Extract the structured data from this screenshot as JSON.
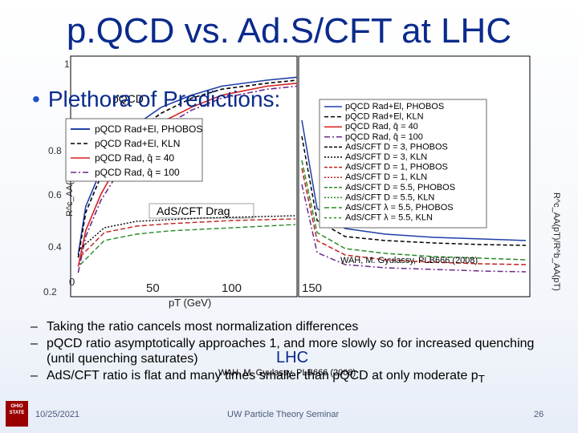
{
  "slide": {
    "title": "p.QCD vs. Ad.S/CFT at LHC",
    "bullet_main": "Plethora of Predictions:",
    "sub_bullets": [
      "Taking the ratio cancels most normalization differences",
      "pQCD ratio asymptotically approaches 1, and more slowly so for increased quenching (until quenching saturates)",
      "AdS/CFT ratio is flat and many times smaller than pQCD at only moderate p"
    ],
    "sub_bullet_3_subscript": "T",
    "citation": "WAH, M. Gyulassy, PLB666 (2008)",
    "citation_top": "WAH, M. Gyulassy, PLB666 (2008)",
    "lhc_label": "LHC",
    "date": "10/25/2021",
    "seminar": "UW Particle Theory Seminar",
    "page_number": "26",
    "logo_text": "OHIO STATE"
  },
  "colors": {
    "title": "#0a2a8c",
    "accent": "#1e50c8",
    "plot_bg": "#ffffff"
  },
  "chart_data": [
    {
      "type": "line",
      "title": "",
      "ylabel": "R^c_AA(pT)/R^b_AA(pT)",
      "xlabel": "pT (GeV)",
      "x_ticks": [
        "0",
        "50",
        "100"
      ],
      "y_ticks": [
        "0.2",
        "0.4",
        "0.6",
        "0.8",
        "1"
      ],
      "xlim": [
        0,
        150
      ],
      "ylim": [
        0.2,
        1.0
      ],
      "inset_label": "pQCD",
      "annotation": "AdS/CFT Drag",
      "legend": [
        "pQCD Rad+El, PHOBOS",
        "pQCD Rad+El, KLN",
        "pQCD Rad, q̂ = 40",
        "pQCD Rad, q̂ = 100"
      ],
      "series": [
        {
          "name": "pQCD Rad+El, PHOBOS",
          "x": [
            5,
            10,
            20,
            30,
            40,
            60,
            80,
            100,
            130,
            150
          ],
          "values": [
            0.34,
            0.5,
            0.62,
            0.7,
            0.76,
            0.83,
            0.87,
            0.9,
            0.92,
            0.93
          ]
        },
        {
          "name": "pQCD Rad+El, KLN",
          "x": [
            5,
            10,
            20,
            30,
            40,
            60,
            80,
            100,
            130,
            150
          ],
          "values": [
            0.33,
            0.48,
            0.6,
            0.68,
            0.74,
            0.81,
            0.86,
            0.89,
            0.91,
            0.92
          ]
        },
        {
          "name": "pQCD Rad, q̂ = 40",
          "x": [
            5,
            10,
            20,
            30,
            40,
            60,
            80,
            100,
            130,
            150
          ],
          "values": [
            0.3,
            0.42,
            0.54,
            0.63,
            0.7,
            0.78,
            0.83,
            0.87,
            0.9,
            0.91
          ]
        },
        {
          "name": "pQCD Rad, q̂ = 100",
          "x": [
            5,
            10,
            20,
            30,
            40,
            60,
            80,
            100,
            130,
            150
          ],
          "values": [
            0.28,
            0.4,
            0.52,
            0.6,
            0.67,
            0.76,
            0.82,
            0.86,
            0.89,
            0.9
          ]
        }
      ]
    },
    {
      "type": "line",
      "ylabel": "R^c_AA(pT)/R^b_AA(pT)",
      "xlabel": "pT (GeV)",
      "x_ticks": [
        "0",
        "50",
        "100",
        "150"
      ],
      "xlim": [
        0,
        150
      ],
      "ylim": [
        0.2,
        1.0
      ],
      "legend": [
        "pQCD Rad+El, PHOBOS",
        "pQCD Rad+El, KLN",
        "pQCD Rad, q̂ = 40",
        "pQCD Rad, q̂ = 100",
        "AdS/CFT D = 3, PHOBOS",
        "AdS/CFT D = 3, KLN",
        "AdS/CFT D = 1, PHOBOS",
        "AdS/CFT D = 1, KLN",
        "AdS/CFT D = 5.5, PHOBOS",
        "AdS/CFT D = 5.5, KLN",
        "AdS/CFT λ = 5.5, PHOBOS",
        "AdS/CFT λ = 5.5, KLN"
      ]
    }
  ]
}
